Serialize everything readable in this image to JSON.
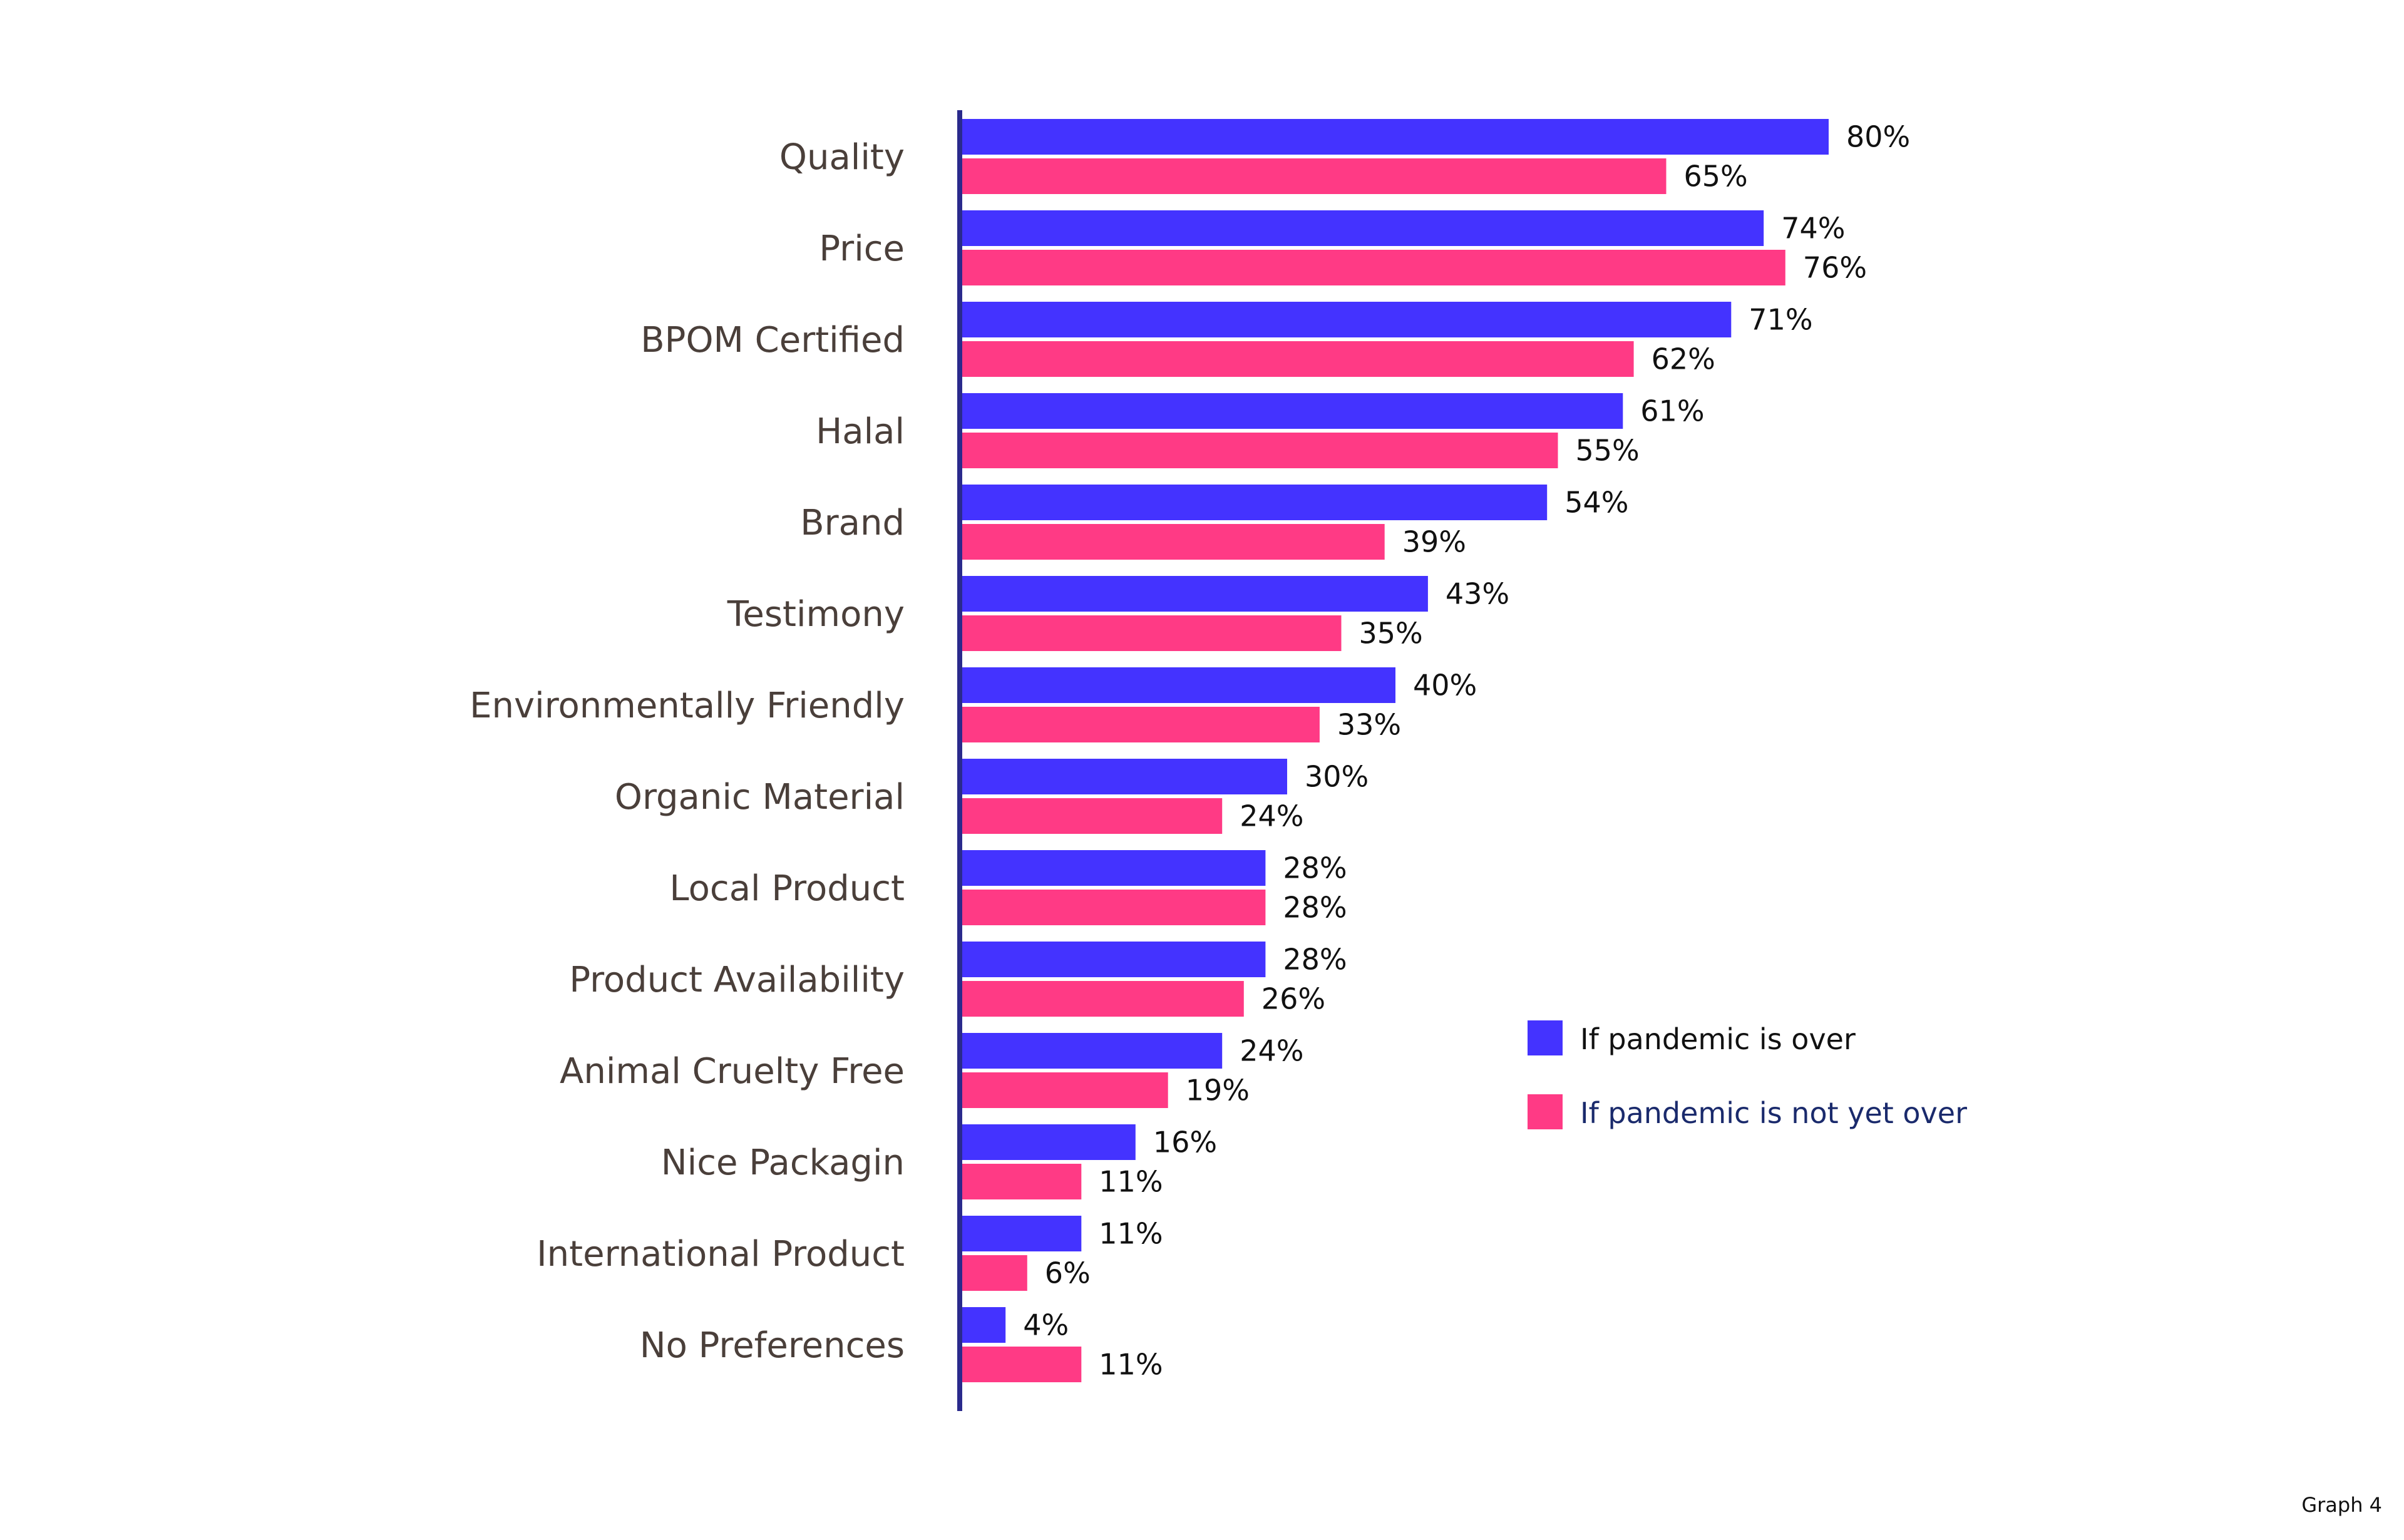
{
  "chart_data": {
    "type": "bar",
    "orientation": "horizontal",
    "categories": [
      "Quality",
      "Price",
      "BPOM Certified",
      "Halal",
      "Brand",
      "Testimony",
      "Environmentally Friendly",
      "Organic Material",
      "Local Product",
      "Product Availability",
      "Animal Cruelty Free",
      "Nice Packagin",
      "International Product",
      "No Preferences"
    ],
    "series": [
      {
        "name": "If pandemic is over",
        "color": "#4433ff",
        "values": [
          80,
          74,
          71,
          61,
          54,
          43,
          40,
          30,
          28,
          28,
          24,
          16,
          11,
          4
        ],
        "labels": [
          "80%",
          "74%",
          "71%",
          "61%",
          "54%",
          "43%",
          "40%",
          "30%",
          "28%",
          "28%",
          "24%",
          "16%",
          "11%",
          "4%"
        ]
      },
      {
        "name": "If pandemic is not yet over",
        "color": "#ff3a85",
        "values": [
          65,
          76,
          62,
          55,
          39,
          35,
          33,
          24,
          28,
          26,
          19,
          11,
          6,
          11
        ],
        "labels": [
          "65%",
          "76%",
          "62%",
          "55%",
          "39%",
          "35%",
          "33%",
          "24%",
          "28%",
          "26%",
          "19%",
          "11%",
          "6%",
          "11%"
        ]
      }
    ],
    "value_unit": "%",
    "legend_position": "right",
    "grid": false,
    "axis_color": "#2a2a8c"
  },
  "footer": {
    "caption": "Graph 4"
  }
}
